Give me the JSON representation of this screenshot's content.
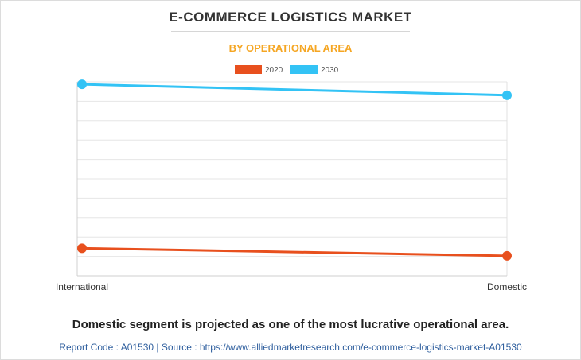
{
  "header": {
    "title": "E-COMMERCE LOGISTICS MARKET",
    "subtitle": "BY OPERATIONAL AREA"
  },
  "footer": {
    "caption": "Domestic segment is projected as one of the most lucrative operational area.",
    "source": "Report Code : A01530  |  Source : https://www.alliedmarketresearch.com/e-commerce-logistics-market-A01530"
  },
  "colors": {
    "series_2020": "#e8501e",
    "series_2030": "#33c3f5",
    "grid": "#e6e6e6"
  },
  "chart_data": {
    "type": "line",
    "categories": [
      "International",
      "Domestic"
    ],
    "series": [
      {
        "name": "2020",
        "values": [
          14.2,
          10.3
        ],
        "color": "#e8501e"
      },
      {
        "name": "2030",
        "values": [
          98.7,
          93.1
        ],
        "color": "#33c3f5"
      }
    ],
    "ylim": [
      0,
      100
    ],
    "grid": true,
    "legend": "top-center",
    "xlabel": "",
    "ylabel": ""
  }
}
